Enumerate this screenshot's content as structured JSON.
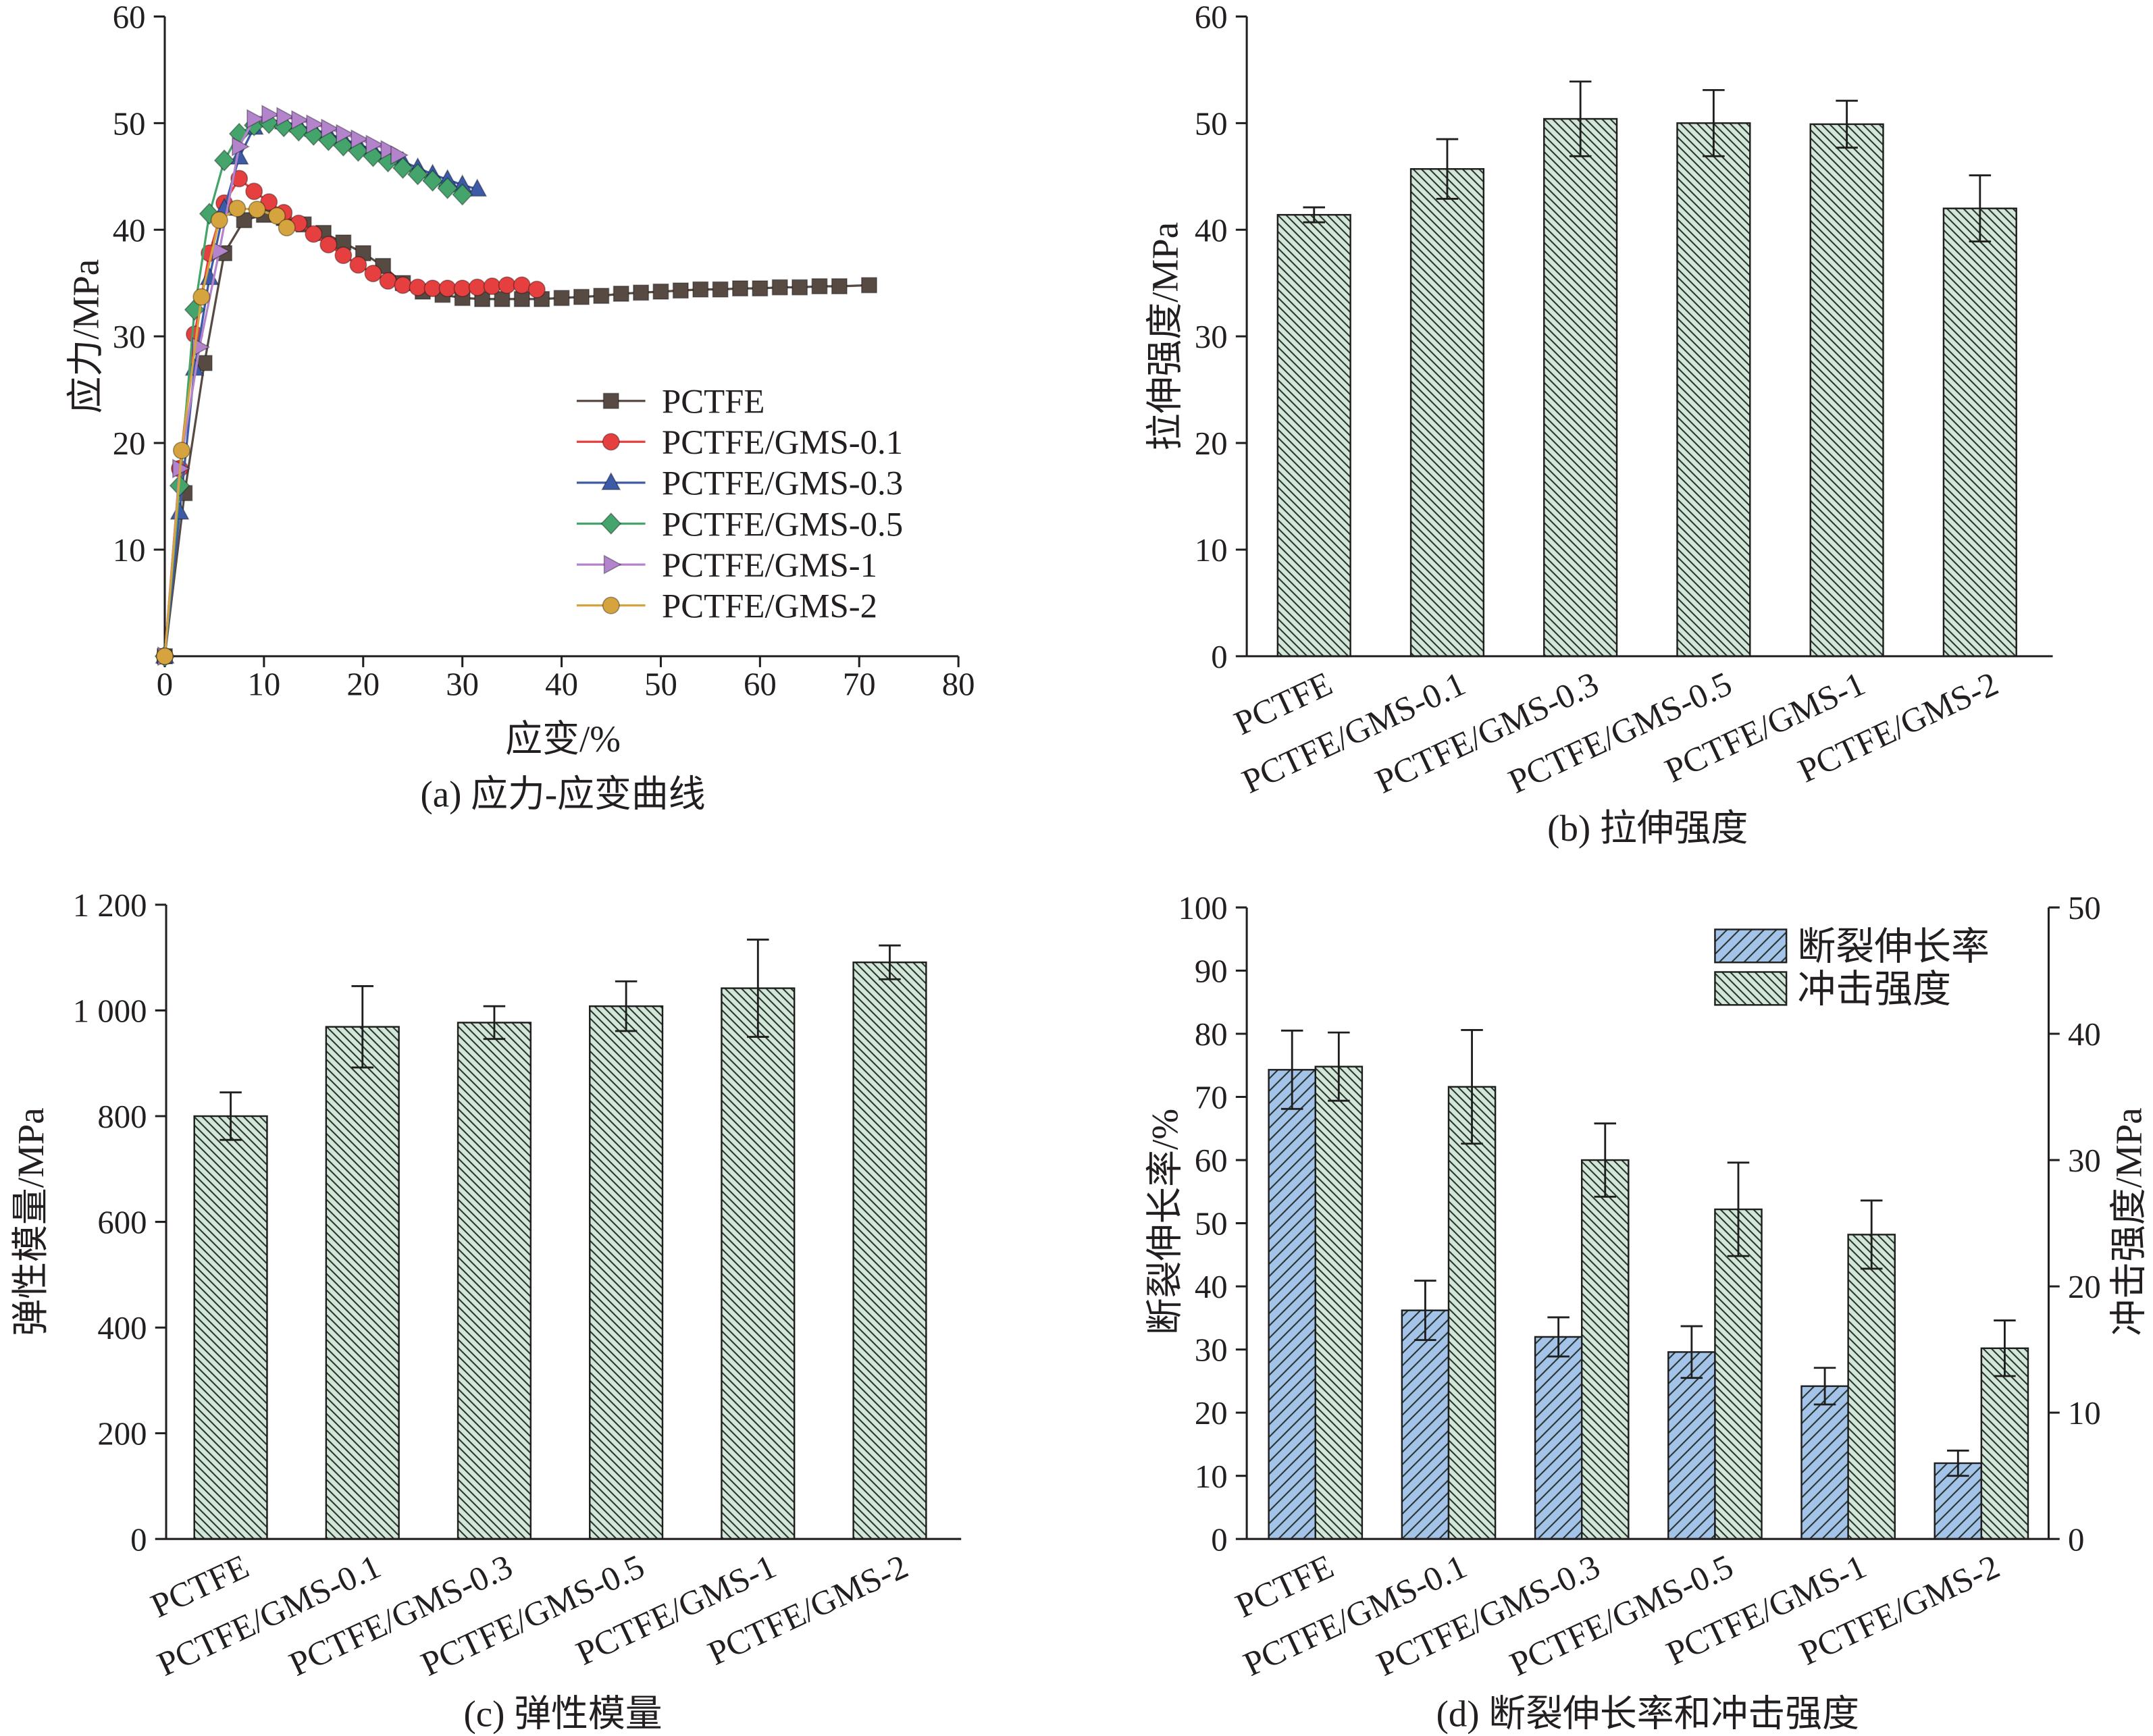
{
  "chart_data": [
    {
      "type": "line",
      "title": "(a) 应力-应变曲线",
      "xlabel": "应变/%",
      "ylabel": "应力/MPa",
      "xlim": [
        0,
        80
      ],
      "ylim": [
        0,
        60
      ],
      "xticks": [
        0,
        10,
        20,
        30,
        40,
        50,
        60,
        70,
        80
      ],
      "yticks": [
        10,
        20,
        30,
        40,
        50,
        60
      ],
      "grid": false,
      "legend": "center-right",
      "series": [
        {
          "name": "PCTFE",
          "color": "#574a43",
          "marker": "square",
          "x": [
            0,
            2,
            4,
            6,
            8,
            10,
            12,
            14,
            16,
            18,
            20,
            22,
            24,
            26,
            28,
            30,
            32,
            34,
            36,
            38,
            40,
            42,
            44,
            46,
            48,
            50,
            52,
            54,
            56,
            58,
            60,
            62,
            64,
            66,
            68,
            71
          ],
          "y": [
            0,
            15.3,
            27.5,
            37.8,
            40.9,
            41.4,
            41.1,
            40.5,
            39.7,
            38.8,
            37.8,
            36.6,
            35.0,
            34.2,
            33.9,
            33.6,
            33.5,
            33.5,
            33.5,
            33.5,
            33.6,
            33.7,
            33.8,
            34.0,
            34.1,
            34.2,
            34.3,
            34.4,
            34.4,
            34.5,
            34.5,
            34.6,
            34.6,
            34.7,
            34.7,
            34.8
          ]
        },
        {
          "name": "PCTFE/GMS-0.1",
          "color": "#e5403f",
          "marker": "circle",
          "x": [
            0,
            1.5,
            3,
            4.5,
            6,
            7.5,
            9,
            10.5,
            12,
            13.5,
            15,
            16.5,
            18,
            19.5,
            21,
            22.5,
            24,
            25.5,
            27,
            28.5,
            30,
            31.5,
            33,
            34.5,
            36,
            37.5
          ],
          "y": [
            0,
            17.6,
            30.2,
            37.8,
            42.5,
            44.8,
            43.6,
            42.6,
            41.6,
            40.6,
            39.6,
            38.6,
            37.6,
            36.7,
            35.9,
            35.2,
            34.8,
            34.6,
            34.5,
            34.5,
            34.5,
            34.6,
            34.7,
            34.8,
            34.8,
            34.4
          ]
        },
        {
          "name": "PCTFE/GMS-0.3",
          "color": "#3c5aa6",
          "marker": "triangle-up",
          "x": [
            0,
            1.5,
            3,
            4.5,
            6,
            7.5,
            9,
            10.5,
            12,
            13.5,
            15,
            16.5,
            18,
            19.5,
            21,
            22.5,
            24,
            25.5,
            27,
            28.5,
            30,
            31.5
          ],
          "y": [
            0,
            13.5,
            27.0,
            35.5,
            42.0,
            46.8,
            49.6,
            50.3,
            50.1,
            49.8,
            49.4,
            49.0,
            48.5,
            48.0,
            47.5,
            47.0,
            46.4,
            45.8,
            45.2,
            44.7,
            44.2,
            43.8
          ]
        },
        {
          "name": "PCTFE/GMS-0.5",
          "color": "#45a36c",
          "marker": "diamond",
          "x": [
            0,
            1.5,
            3,
            4.5,
            6,
            7.5,
            9,
            10.5,
            12,
            13.5,
            15,
            16.5,
            18,
            19.5,
            21,
            22.5,
            24,
            25.5,
            27,
            28.5,
            30
          ],
          "y": [
            0,
            16.0,
            32.5,
            41.5,
            46.5,
            49.0,
            49.8,
            50.0,
            49.7,
            49.3,
            48.9,
            48.4,
            47.9,
            47.4,
            46.9,
            46.4,
            45.8,
            45.2,
            44.6,
            43.9,
            43.3
          ]
        },
        {
          "name": "PCTFE/GMS-1",
          "color": "#b383cc",
          "marker": "triangle-right",
          "x": [
            0,
            1.5,
            3.5,
            5.5,
            7.5,
            9,
            10.5,
            12,
            13.5,
            15,
            16.5,
            18,
            19.5,
            21,
            22.5,
            23.5
          ],
          "y": [
            0,
            17.6,
            29.0,
            38.0,
            47.8,
            50.4,
            50.8,
            50.6,
            50.3,
            49.9,
            49.5,
            49.0,
            48.5,
            48.0,
            47.5,
            47.0
          ]
        },
        {
          "name": "PCTFE/GMS-2",
          "color": "#d6a43e",
          "marker": "circle",
          "x": [
            0,
            1.7,
            3.7,
            5.5,
            7.3,
            9.3,
            11.3,
            12.3
          ],
          "y": [
            0,
            19.3,
            33.7,
            40.9,
            42.0,
            41.9,
            41.3,
            40.2
          ]
        }
      ]
    },
    {
      "type": "bar",
      "title": "(b) 拉伸强度",
      "ylabel": "拉伸强度/MPa",
      "ylim": [
        0,
        60
      ],
      "yticks": [
        0,
        10,
        20,
        30,
        40,
        50,
        60
      ],
      "grid": false,
      "categories": [
        "PCTFE",
        "PCTFE/GMS-0.1",
        "PCTFE/GMS-0.3",
        "PCTFE/GMS-0.5",
        "PCTFE/GMS-1",
        "PCTFE/GMS-2"
      ],
      "values": [
        41.4,
        45.7,
        50.4,
        50.0,
        49.9,
        42.0
      ],
      "errors": [
        0.7,
        2.8,
        3.5,
        3.1,
        2.2,
        3.1
      ],
      "color": "#d2e7d7"
    },
    {
      "type": "bar",
      "title": "(c) 弹性模量",
      "ylabel": "弹性模量/MPa",
      "ylim": [
        0,
        1200
      ],
      "yticks": [
        0,
        200,
        400,
        600,
        800,
        1000,
        1200
      ],
      "ytick_labels": [
        "0",
        "200",
        "400",
        "600",
        "800",
        "1 000",
        "1 200"
      ],
      "grid": false,
      "categories": [
        "PCTFE",
        "PCTFE/GMS-0.1",
        "PCTFE/GMS-0.3",
        "PCTFE/GMS-0.5",
        "PCTFE/GMS-1",
        "PCTFE/GMS-2"
      ],
      "values": [
        800,
        969,
        977,
        1008,
        1042,
        1091
      ],
      "errors": [
        45,
        77,
        31,
        47,
        92,
        32
      ],
      "color": "#d2e7d7"
    },
    {
      "type": "bar",
      "title": "(d) 断裂伸长率和冲击强度",
      "ylabel": "断裂伸长率/%",
      "y2label": "冲击强度/MPa",
      "ylim": [
        0,
        100
      ],
      "y2lim": [
        0,
        50
      ],
      "yticks": [
        0,
        10,
        20,
        30,
        40,
        50,
        60,
        70,
        80,
        90,
        100
      ],
      "y2ticks": [
        0,
        10,
        20,
        30,
        40,
        50
      ],
      "grid": false,
      "legend": "top-right",
      "categories": [
        "PCTFE",
        "PCTFE/GMS-0.1",
        "PCTFE/GMS-0.3",
        "PCTFE/GMS-0.5",
        "PCTFE/GMS-1",
        "PCTFE/GMS-2"
      ],
      "series": [
        {
          "name": "断裂伸长率",
          "axis": "left",
          "color": "#a3c3e8",
          "hatch": "forward",
          "values": [
            74.3,
            36.2,
            32.0,
            29.6,
            24.2,
            12.0
          ],
          "errors": [
            6.2,
            4.7,
            3.1,
            4.1,
            2.9,
            2.0
          ]
        },
        {
          "name": "冲击强度",
          "axis": "right",
          "color": "#d2e7d7",
          "hatch": "backward",
          "values": [
            37.4,
            35.8,
            30.0,
            26.1,
            24.1,
            15.1
          ],
          "errors": [
            2.7,
            4.5,
            2.9,
            3.7,
            2.7,
            2.2
          ]
        }
      ]
    }
  ]
}
